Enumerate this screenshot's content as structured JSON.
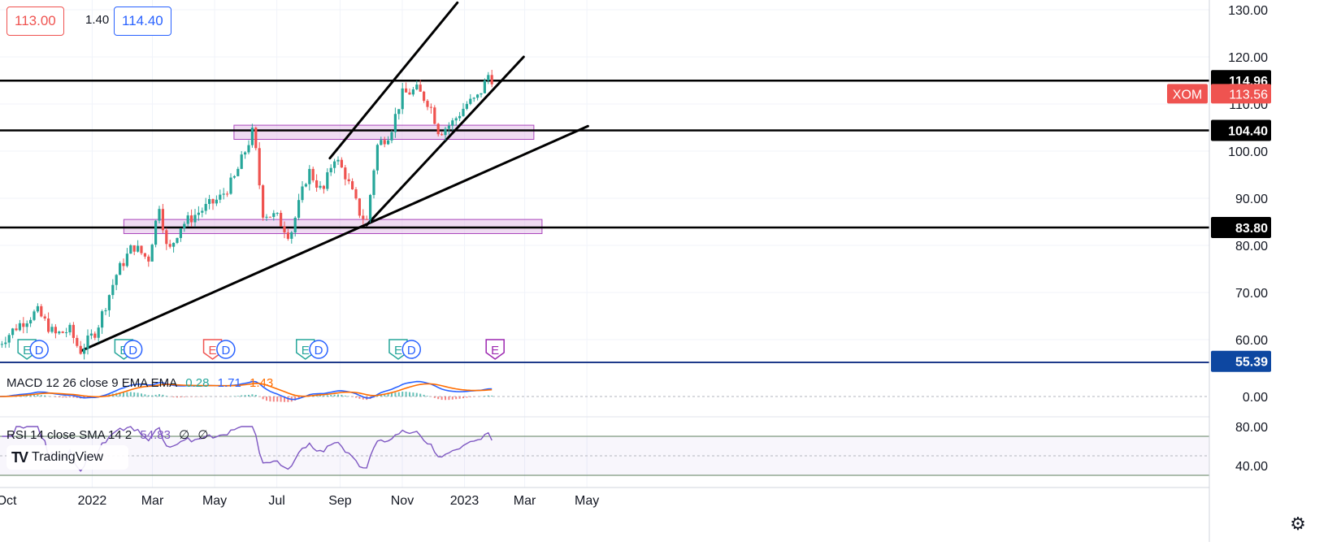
{
  "header": {
    "bid": "113.00",
    "spread": "1.40",
    "ask": "114.40"
  },
  "indicators": {
    "macd": {
      "label": "MACD 12 26 close 9 EMA EMA",
      "v1": "0.28",
      "v2": "1.71",
      "v3": "1.43"
    },
    "rsi": {
      "label": "RSI 14 close SMA 14 2",
      "v1": "54.83",
      "v2": "∅",
      "v3": "∅"
    }
  },
  "branding": {
    "logo_text": "TradingView"
  },
  "colors": {
    "up": "#26a69a",
    "down": "#ef5350",
    "bid": "#ef5350",
    "ask": "#2962ff",
    "macd": "#2962ff",
    "signal": "#ff6d00",
    "rsi": "#7e57c2",
    "zone": "#e1bee7",
    "zone_border": "#ab47bc"
  },
  "chart_data": {
    "type": "candlestick",
    "symbol": "XOM",
    "last_price": "113.56",
    "price_axis_labels": [
      "130.00",
      "120.00",
      "110.00",
      "100.00",
      "90.00",
      "80.00",
      "70.00",
      "60.00"
    ],
    "price_levels": [
      {
        "label": "114.96",
        "value": 114.96
      },
      {
        "label": "104.40",
        "value": 104.4
      },
      {
        "label": "83.80",
        "value": 83.8
      },
      {
        "label": "55.39",
        "value": 55.39
      }
    ],
    "x_tick_labels": [
      "Oct",
      "2022",
      "Mar",
      "May",
      "Jul",
      "Sep",
      "Nov",
      "2023",
      "Mar",
      "May"
    ],
    "price_path": [
      [
        "2021-10-01",
        59
      ],
      [
        "2021-10-20",
        63
      ],
      [
        "2021-11-08",
        66
      ],
      [
        "2021-11-25",
        61
      ],
      [
        "2021-12-10",
        62
      ],
      [
        "2021-12-20",
        57.5
      ],
      [
        "2022-01-05",
        62
      ],
      [
        "2022-01-25",
        74
      ],
      [
        "2022-02-10",
        80
      ],
      [
        "2022-02-25",
        77
      ],
      [
        "2022-03-08",
        89
      ],
      [
        "2022-03-16",
        78
      ],
      [
        "2022-03-28",
        84
      ],
      [
        "2022-04-15",
        87
      ],
      [
        "2022-05-06",
        90
      ],
      [
        "2022-05-20",
        94
      ],
      [
        "2022-06-08",
        104.5
      ],
      [
        "2022-06-17",
        87
      ],
      [
        "2022-07-01",
        86
      ],
      [
        "2022-07-14",
        82
      ],
      [
        "2022-08-01",
        96
      ],
      [
        "2022-08-15",
        91
      ],
      [
        "2022-08-26",
        99
      ],
      [
        "2022-09-06",
        95
      ],
      [
        "2022-09-20",
        87
      ],
      [
        "2022-09-27",
        85
      ],
      [
        "2022-10-07",
        101
      ],
      [
        "2022-10-20",
        104
      ],
      [
        "2022-11-01",
        112
      ],
      [
        "2022-11-15",
        113
      ],
      [
        "2022-11-28",
        110
      ],
      [
        "2022-12-07",
        104
      ],
      [
        "2022-12-20",
        106
      ],
      [
        "2023-01-03",
        110
      ],
      [
        "2023-01-13",
        111
      ],
      [
        "2023-01-20",
        114
      ],
      [
        "2023-01-26",
        117
      ],
      [
        "2023-01-30",
        113.56
      ]
    ],
    "earnings_markers": [
      {
        "date": "2021-10-29",
        "kind": "E",
        "color": "#26a69a"
      },
      {
        "date": "2021-11-10",
        "kind": "D",
        "color": "#2962ff"
      },
      {
        "date": "2022-02-01",
        "kind": "E",
        "color": "#26a69a"
      },
      {
        "date": "2022-02-10",
        "kind": "D",
        "color": "#2962ff"
      },
      {
        "date": "2022-04-29",
        "kind": "E",
        "color": "#ef5350"
      },
      {
        "date": "2022-05-12",
        "kind": "D",
        "color": "#2962ff"
      },
      {
        "date": "2022-07-29",
        "kind": "E",
        "color": "#26a69a"
      },
      {
        "date": "2022-08-11",
        "kind": "D",
        "color": "#2962ff"
      },
      {
        "date": "2022-10-28",
        "kind": "E",
        "color": "#26a69a"
      },
      {
        "date": "2022-11-10",
        "kind": "D",
        "color": "#2962ff"
      },
      {
        "date": "2023-01-31",
        "kind": "E",
        "color": "#9c27b0"
      }
    ],
    "horizontal_lines": [
      114.96,
      104.4,
      83.8
    ],
    "zones": [
      {
        "from": "2022-05-20",
        "to": "2023-03-10",
        "low": 102.5,
        "high": 105.5
      },
      {
        "from": "2022-02-01",
        "to": "2023-03-18",
        "low": 82.5,
        "high": 85.5
      },
      {
        "from": "2021-12-20",
        "to": "2023-04-30",
        "low": 55.0,
        "high": 55.0,
        "hidden": true
      }
    ],
    "trendlines": [
      {
        "from": [
          "2021-12-21",
          57.6
        ],
        "to": [
          "2023-05-02",
          105.3
        ]
      },
      {
        "from": [
          "2022-09-27",
          84.3
        ],
        "to": [
          "2023-02-28",
          120
        ]
      },
      {
        "from": [
          "2022-08-22",
          98.5
        ],
        "to": [
          "2022-12-25",
          131.5
        ]
      }
    ],
    "macd_axis_labels": [
      "0.00"
    ],
    "rsi_axis_labels": [
      "80.00",
      "40.00"
    ],
    "rsi_bands": [
      70,
      30
    ]
  }
}
